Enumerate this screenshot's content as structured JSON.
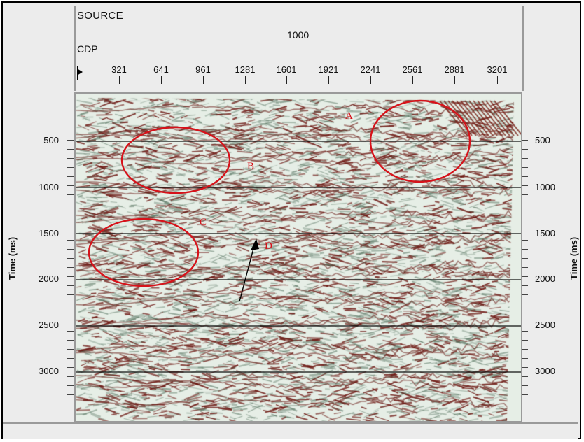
{
  "header": {
    "source_label": "SOURCE",
    "source_value": "1000",
    "cdp_label": "CDP",
    "cdp_ticks": [
      "321",
      "641",
      "961",
      "1281",
      "1601",
      "1921",
      "2241",
      "2561",
      "2881",
      "3201"
    ]
  },
  "axis": {
    "left_title": "Time (ms)",
    "right_title": "Time (ms)",
    "time_ticks": [
      "500",
      "1000",
      "1500",
      "2000",
      "2500",
      "3000"
    ]
  },
  "annotations": {
    "a": "A",
    "b": "B",
    "c": "C",
    "d": "D"
  },
  "colors": {
    "highlight": "#d6121a",
    "arrow": "#000000",
    "trace_positive": "#7a1f1a",
    "trace_background": "#e6eee6"
  }
}
